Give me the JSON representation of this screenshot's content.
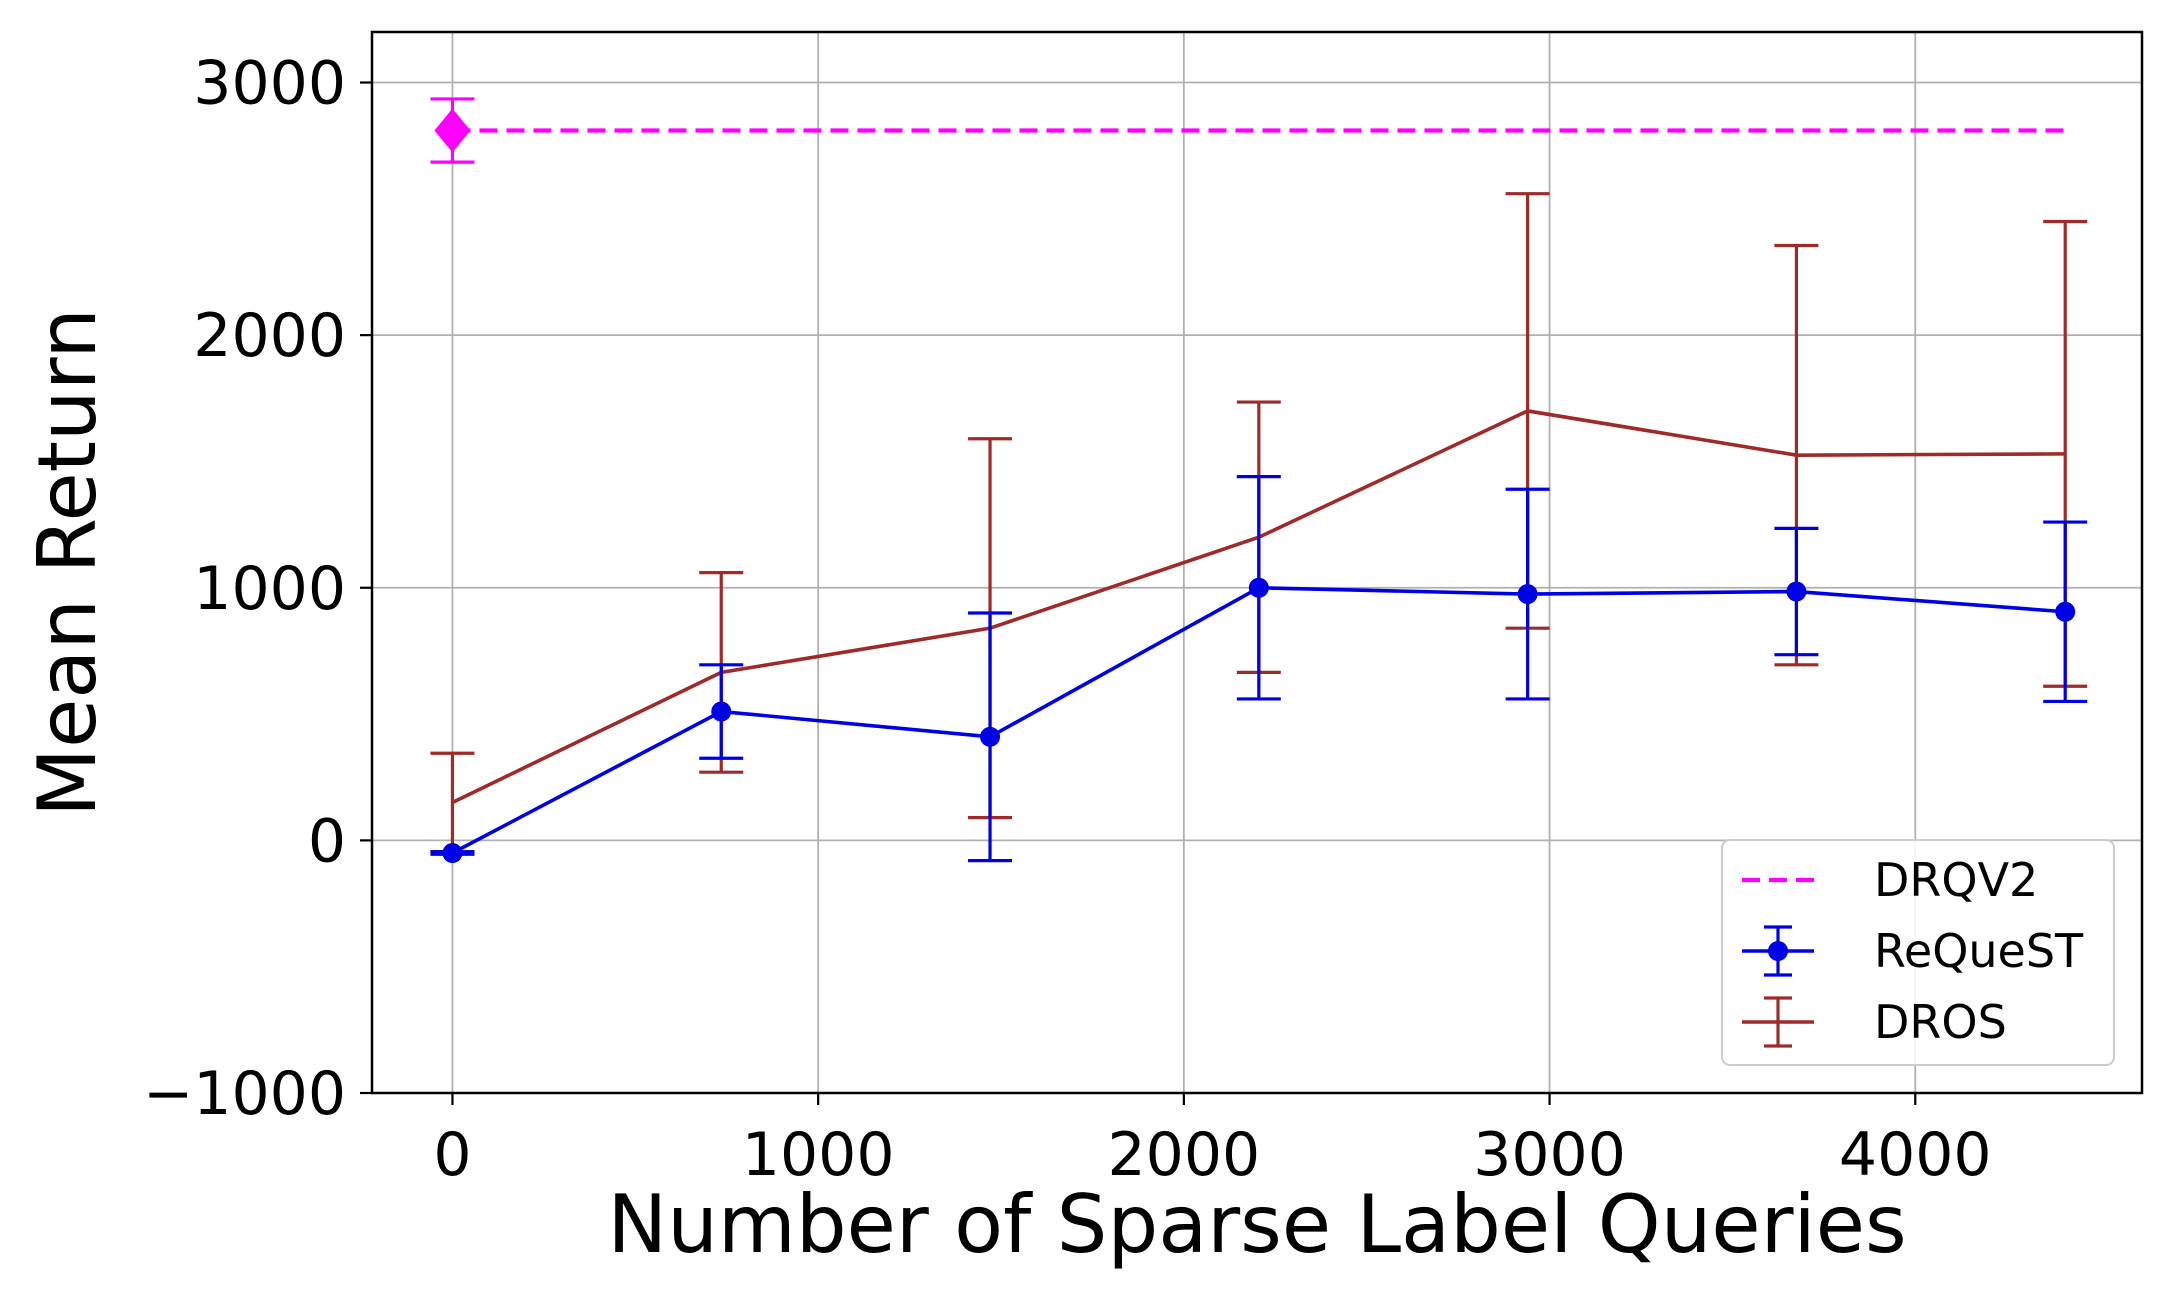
{
  "chart_data": {
    "type": "line",
    "title": "",
    "xlabel": "Number of Sparse Label Queries",
    "ylabel": "Mean Return",
    "xlim": [
      -220,
      4620
    ],
    "ylim": [
      -1000,
      3200
    ],
    "xticks": [
      0,
      1000,
      2000,
      3000,
      4000
    ],
    "xtick_labels": [
      "0",
      "1000",
      "2000",
      "3000",
      "4000"
    ],
    "yticks": [
      -1000,
      0,
      1000,
      2000,
      3000
    ],
    "ytick_labels": [
      "−1000",
      "0",
      "1000",
      "2000",
      "3000"
    ],
    "grid": true,
    "legend_position": "lower right",
    "series": [
      {
        "name": "DRQV2",
        "kind": "reference",
        "color": "#ff00ff",
        "style": "dashed",
        "marker": "diamond",
        "x": [
          0
        ],
        "y": [
          2810
        ],
        "yerr": [
          125
        ],
        "line_to_x": 4420
      },
      {
        "name": "ReQueST",
        "kind": "errorbar",
        "color": "#0000e6",
        "style": "solid",
        "marker": "circle",
        "x": [
          0,
          735,
          1470,
          2205,
          2940,
          3675,
          4410
        ],
        "y": [
          -50,
          510,
          410,
          1000,
          975,
          985,
          905
        ],
        "yerr": [
          5,
          185,
          490,
          440,
          415,
          250,
          355
        ]
      },
      {
        "name": "DROS",
        "kind": "errorbar",
        "color": "#9e2a2a",
        "style": "solid",
        "marker": "none",
        "x": [
          0,
          735,
          1470,
          2205,
          2940,
          3675,
          4410
        ],
        "y": [
          150,
          665,
          840,
          1200,
          1700,
          1525,
          1530
        ],
        "yerr": [
          195,
          395,
          750,
          535,
          860,
          830,
          920
        ]
      }
    ]
  }
}
